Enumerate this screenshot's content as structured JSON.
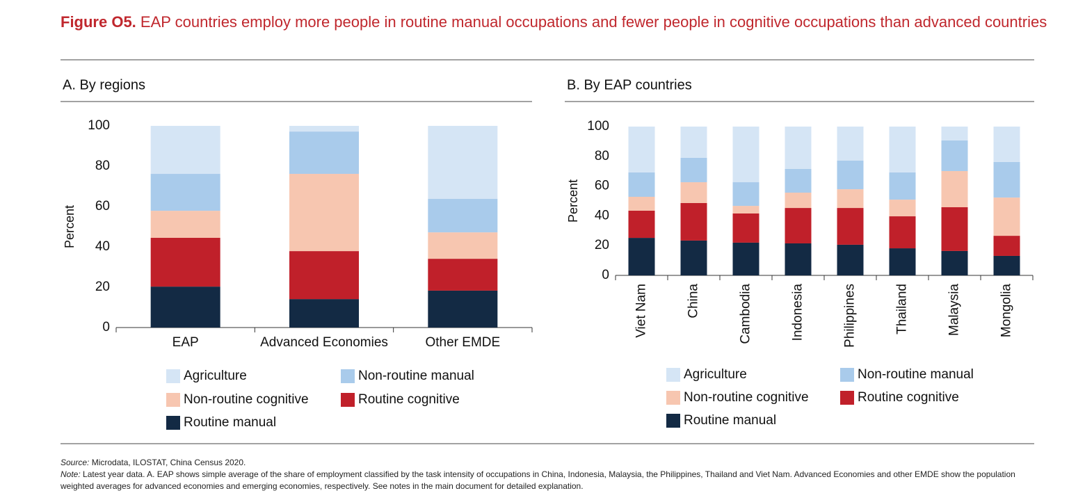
{
  "figure": {
    "label": "Figure O5.",
    "title": "EAP countries employ more people in routine manual occupations and fewer people in cognitive occupations than advanced countries",
    "source_label": "Source:",
    "source": "Microdata, ILOSTAT, China Census 2020.",
    "note_label": "Note:",
    "note": "Latest year data. A. EAP shows simple average of the share of employment classified by the task intensity of occupations in China, Indonesia, Malaysia, the Philippines, Thailand and Viet Nam. Advanced Economies and other EMDE show the population weighted averages for advanced economies and emerging economies, respectively. See notes in the main document for detailed explanation."
  },
  "chart_data": [
    {
      "type": "stacked_bar",
      "title": "A. By regions",
      "y_label": "Percent",
      "categories": [
        "EAP",
        "Advanced Economies",
        "Other EMDE"
      ],
      "series": [
        {
          "name": "Agriculture",
          "color": "#d5e5f5",
          "values": [
            23.8,
            2.8,
            36.2
          ]
        },
        {
          "name": "Non-routine manual",
          "color": "#a9cbeb",
          "values": [
            18.3,
            21.0,
            16.6
          ]
        },
        {
          "name": "Non-routine cognitive",
          "color": "#f7c6b0",
          "values": [
            13.4,
            38.3,
            13.1
          ]
        },
        {
          "name": "Routine cognitive",
          "color": "#c0202a",
          "values": [
            24.2,
            23.8,
            15.8
          ]
        },
        {
          "name": "Routine manual",
          "color": "#132a44",
          "values": [
            20.3,
            14.1,
            18.3
          ]
        }
      ],
      "ylim": [
        0,
        100
      ],
      "yticks": [
        0,
        20,
        40,
        60,
        80,
        100
      ]
    },
    {
      "type": "stacked_bar",
      "title": "B. By EAP countries",
      "y_label": "Percent",
      "categories": [
        "Viet Nam",
        "China",
        "Cambodia",
        "Indonesia",
        "Philippines",
        "Thailand",
        "Malaysia",
        "Mongolia"
      ],
      "series": [
        {
          "name": "Agriculture",
          "color": "#d5e5f5",
          "values": [
            30.8,
            21.0,
            37.4,
            28.5,
            22.9,
            30.8,
            9.3,
            23.8
          ]
        },
        {
          "name": "Non-routine manual",
          "color": "#a9cbeb",
          "values": [
            16.4,
            16.4,
            15.9,
            15.9,
            19.2,
            18.3,
            20.6,
            23.9
          ]
        },
        {
          "name": "Non-routine cognitive",
          "color": "#f7c6b0",
          "values": [
            9.3,
            14.0,
            5.1,
            10.3,
            12.6,
            11.2,
            24.3,
            25.7
          ]
        },
        {
          "name": "Routine cognitive",
          "color": "#c0202a",
          "values": [
            18.3,
            25.2,
            19.6,
            23.8,
            24.7,
            21.5,
            29.4,
            13.5
          ]
        },
        {
          "name": "Routine manual",
          "color": "#132a44",
          "values": [
            25.2,
            23.4,
            22.0,
            21.5,
            20.6,
            18.2,
            16.4,
            13.1
          ]
        }
      ],
      "ylim": [
        0,
        100
      ],
      "yticks": [
        0,
        20,
        40,
        60,
        80,
        100
      ]
    }
  ]
}
